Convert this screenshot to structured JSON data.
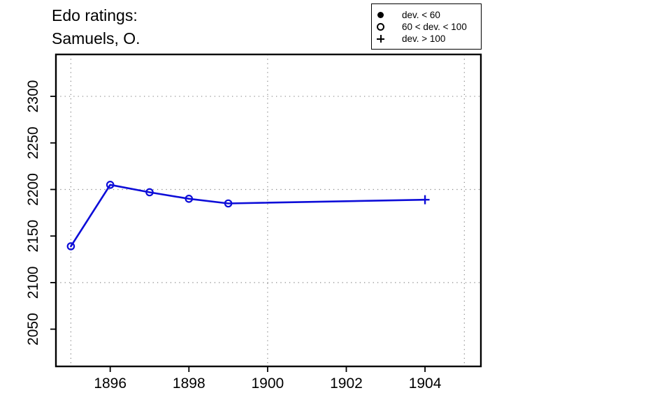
{
  "chart_data": {
    "type": "line",
    "title_lines": [
      "Edo ratings:",
      "Samuels, O."
    ],
    "xlabel": "",
    "ylabel": "",
    "x_ticks": [
      1896,
      1898,
      1900,
      1902,
      1904
    ],
    "y_ticks": [
      2050,
      2100,
      2150,
      2200,
      2250,
      2300
    ],
    "grid": {
      "x": [
        1895,
        1900,
        1905
      ],
      "y": [
        2100,
        2200,
        2300
      ]
    },
    "xlim": [
      1894.62,
      1905.42
    ],
    "ylim": [
      2010,
      2345
    ],
    "grid_on": true,
    "line_color": "#0d0dd8",
    "grid_color": "#8a8a8a",
    "points": [
      {
        "x": 1895,
        "y": 2139,
        "marker": "open-circle"
      },
      {
        "x": 1896,
        "y": 2205,
        "marker": "open-circle"
      },
      {
        "x": 1897,
        "y": 2197,
        "marker": "open-circle"
      },
      {
        "x": 1898,
        "y": 2190,
        "marker": "open-circle"
      },
      {
        "x": 1899,
        "y": 2185,
        "marker": "open-circle"
      },
      {
        "x": 1904,
        "y": 2189,
        "marker": "plus"
      }
    ],
    "legend": {
      "position": "top-right",
      "items": [
        {
          "symbol": "filled-circle",
          "label": "dev. < 60"
        },
        {
          "symbol": "open-circle",
          "label": "60 < dev. < 100"
        },
        {
          "symbol": "plus",
          "label": "dev. > 100"
        }
      ]
    }
  }
}
